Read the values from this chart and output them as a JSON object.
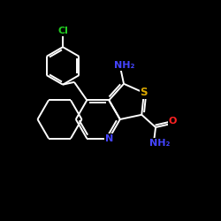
{
  "bg_color": "#000000",
  "bond_color": "#ffffff",
  "bond_width": 1.4,
  "atom_colors": {
    "C": "#ffffff",
    "N": "#4444ff",
    "O": "#ff2222",
    "S": "#ddaa00",
    "Cl": "#22cc22",
    "H": "#ffffff"
  },
  "figsize": [
    2.5,
    2.5
  ],
  "dpi": 100
}
